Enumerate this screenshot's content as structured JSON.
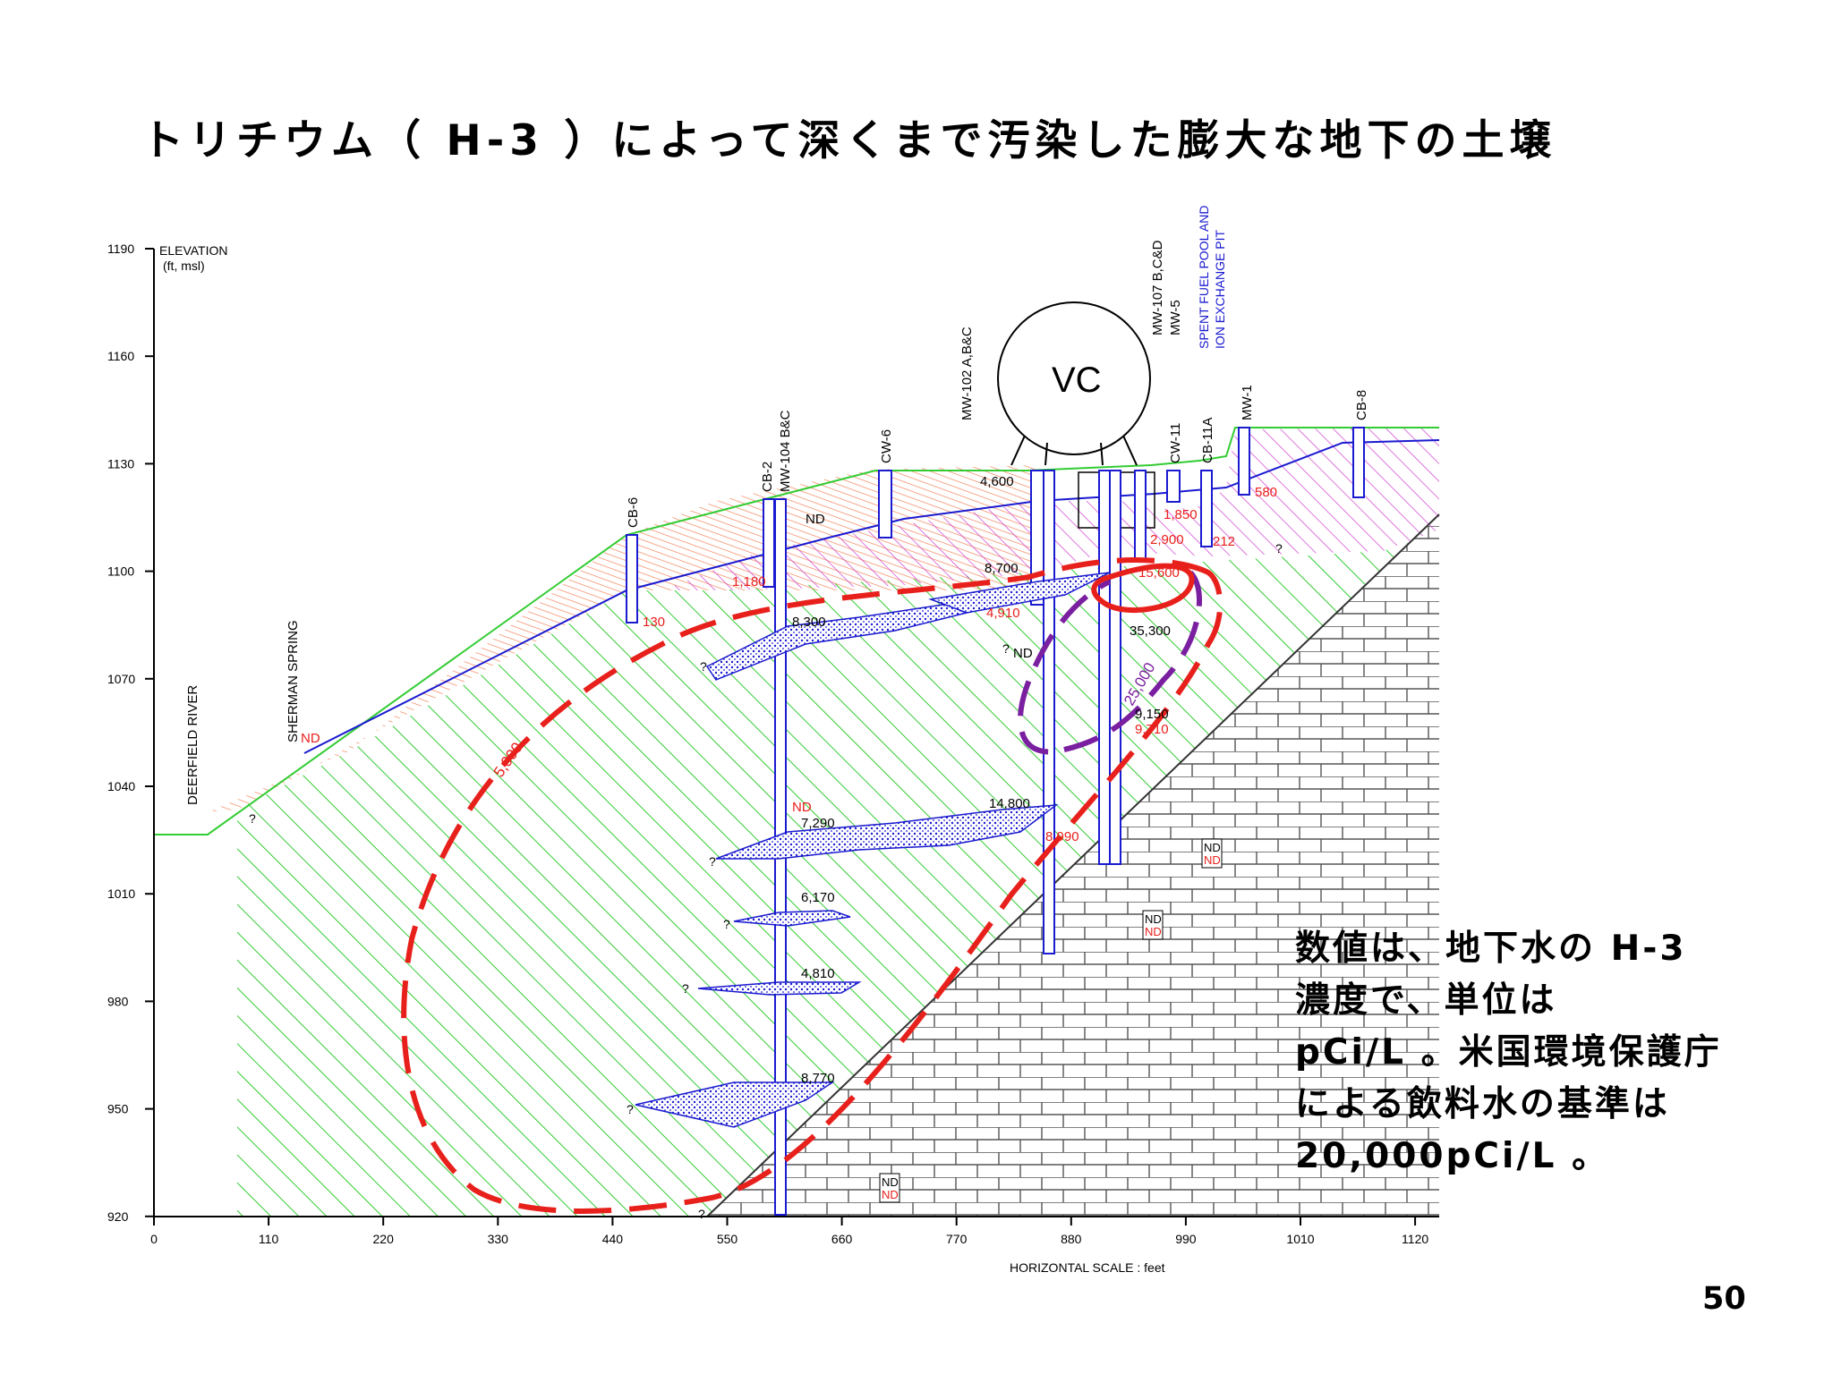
{
  "title": "トリチウム（ H-3 ）によって深くまで汚染した膨大な地下の土壌",
  "note": {
    "lines": [
      "数値は、地下水の H-3",
      "濃度で、単位は",
      "pCi/L 。米国環境保護庁",
      "による飲料水の基準は",
      "20,000pCi/L 。"
    ]
  },
  "page_number": "50",
  "section": {
    "elevation_label": "ELEVATION",
    "elevation_unit": "(ft, msl)",
    "horizontal_scale_label": "HORIZONTAL SCALE :  feet",
    "y_ticks": [
      "1190",
      "1160",
      "1130",
      "1100",
      "1070",
      "1040",
      "1010",
      "980",
      "950",
      "920"
    ],
    "x_ticks": [
      "0",
      "110",
      "220",
      "330",
      "440",
      "550",
      "660",
      "770",
      "880",
      "990",
      "1010",
      "1120"
    ],
    "features": {
      "river": "DEERFIELD RIVER",
      "spring": "SHERMAN SPRING",
      "vessel": "VC",
      "fuel_pool": [
        "SPENT FUEL POOL AND",
        "ION EXCHANGE PIT"
      ]
    },
    "wells": [
      "CB-6",
      "CB-2",
      "MW-104 B&C",
      "CW-6",
      "MW-102 A,B&C",
      "MW-107 B,C&D",
      "MW-5",
      "CW-11",
      "CB-11A",
      "MW-1",
      "CB-8"
    ],
    "contours": [
      "5,000",
      "25,000"
    ],
    "labels_black": [
      "4,600",
      "ND",
      "8,700",
      "8,300",
      "ND",
      "14,800",
      "7,290",
      "6,170",
      "4,810",
      "8,770",
      "35,300",
      "9,150",
      "A",
      "B",
      "C",
      "C",
      "A",
      "B",
      "B",
      "B",
      "C"
    ],
    "labels_red": [
      "1,180",
      "1,850",
      "2,900",
      "15,600",
      "212",
      "580",
      "4,910",
      "ND",
      "9,710",
      "ND",
      "8,990",
      "ND",
      "ND",
      "ND",
      "ND",
      "ND",
      "ND",
      "ND",
      "130"
    ],
    "question_mark": "?"
  },
  "colors": {
    "contour_red": "#e8201c",
    "contour_purple": "#7a1fa0",
    "green_hatch": "#33cc33",
    "orange_hatch": "#f07a50",
    "magenta_hatch": "#d040d0",
    "well_blue": "#1a1ad0"
  }
}
